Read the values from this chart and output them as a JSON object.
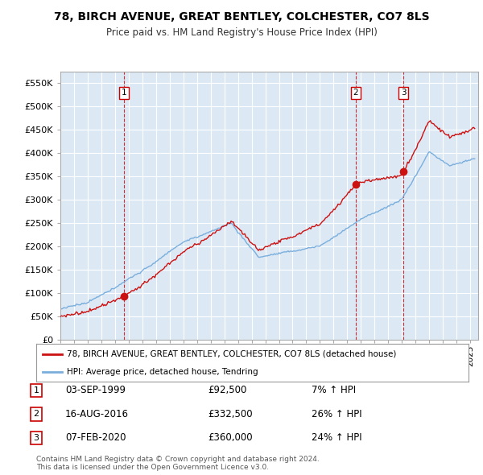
{
  "title": "78, BIRCH AVENUE, GREAT BENTLEY, COLCHESTER, CO7 8LS",
  "subtitle": "Price paid vs. HM Land Registry's House Price Index (HPI)",
  "ylim": [
    0,
    575000
  ],
  "yticks": [
    0,
    50000,
    100000,
    150000,
    200000,
    250000,
    300000,
    350000,
    400000,
    450000,
    500000,
    550000
  ],
  "ytick_labels": [
    "£0",
    "£50K",
    "£100K",
    "£150K",
    "£200K",
    "£250K",
    "£300K",
    "£350K",
    "£400K",
    "£450K",
    "£500K",
    "£550K"
  ],
  "sale_prices": [
    92500,
    332500,
    360000
  ],
  "sale_labels": [
    "1",
    "2",
    "3"
  ],
  "hpi_color": "#7aaedc",
  "price_color": "#cc1111",
  "vline_color": "#cc0000",
  "legend_label_price": "78, BIRCH AVENUE, GREAT BENTLEY, COLCHESTER, CO7 8LS (detached house)",
  "legend_label_hpi": "HPI: Average price, detached house, Tendring",
  "table_data": [
    [
      "1",
      "03-SEP-1999",
      "£92,500",
      "7% ↑ HPI"
    ],
    [
      "2",
      "16-AUG-2016",
      "£332,500",
      "26% ↑ HPI"
    ],
    [
      "3",
      "07-FEB-2020",
      "£360,000",
      "24% ↑ HPI"
    ]
  ],
  "footer": "Contains HM Land Registry data © Crown copyright and database right 2024.\nThis data is licensed under the Open Government Licence v3.0.",
  "chart_bg": "#dce9f5",
  "fig_bg": "#ffffff",
  "grid_color": "#ffffff"
}
